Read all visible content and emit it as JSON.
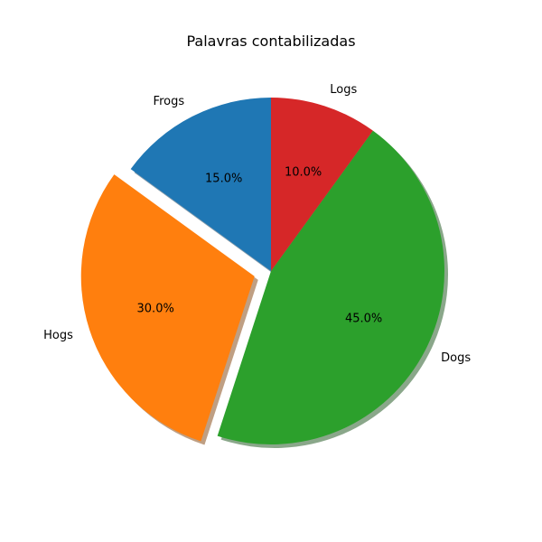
{
  "chart_data": {
    "type": "pie",
    "title": "Palavras contabilizadas",
    "labels": [
      "Frogs",
      "Hogs",
      "Dogs",
      "Logs"
    ],
    "values": [
      15,
      30,
      45,
      10
    ],
    "value_labels": [
      "15.0%",
      "30.0%",
      "45.0%",
      "10.0%"
    ],
    "colors": [
      "#1f77b4",
      "#ff7f0e",
      "#2ca02c",
      "#d62728"
    ],
    "explode": [
      0,
      0.1,
      0,
      0
    ],
    "start_angle_deg": 90,
    "direction": "counterclockwise",
    "shadow": true
  }
}
